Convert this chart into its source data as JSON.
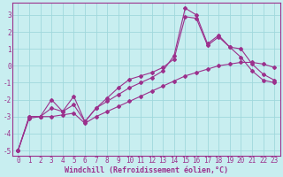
{
  "xlabel": "Windchill (Refroidissement éolien,°C)",
  "bg_color": "#c8eef0",
  "line_color": "#9b308c",
  "grid_color": "#a0d8dc",
  "xlim": [
    -0.5,
    23.5
  ],
  "ylim": [
    -5.3,
    3.7
  ],
  "xticks": [
    0,
    1,
    2,
    3,
    4,
    5,
    6,
    7,
    8,
    9,
    10,
    11,
    12,
    13,
    14,
    15,
    16,
    17,
    18,
    19,
    20,
    21,
    22,
    23
  ],
  "yticks": [
    -5,
    -4,
    -3,
    -2,
    -1,
    0,
    1,
    2,
    3
  ],
  "line1_x": [
    0,
    1,
    2,
    3,
    4,
    5,
    6,
    7,
    8,
    9,
    10,
    11,
    12,
    13,
    14,
    15,
    16,
    17,
    18,
    19,
    20,
    21,
    22,
    23
  ],
  "line1_y": [
    -5.0,
    -3.1,
    -3.0,
    -3.0,
    -2.9,
    -2.8,
    -3.4,
    -3.0,
    -2.7,
    -2.4,
    -2.1,
    -1.8,
    -1.5,
    -1.2,
    -0.9,
    -0.6,
    -0.4,
    -0.2,
    0.0,
    0.1,
    0.2,
    0.2,
    0.1,
    -0.1
  ],
  "line2_x": [
    0,
    1,
    2,
    3,
    4,
    5,
    6,
    7,
    8,
    9,
    10,
    11,
    12,
    13,
    14,
    15,
    16,
    17,
    18,
    19,
    20,
    21,
    22,
    23
  ],
  "line2_y": [
    -5.0,
    -3.0,
    -3.0,
    -2.0,
    -2.7,
    -1.8,
    -3.3,
    -2.5,
    -1.9,
    -1.3,
    -0.8,
    -0.6,
    -0.4,
    -0.1,
    0.4,
    2.9,
    2.8,
    1.2,
    1.7,
    1.1,
    1.0,
    0.1,
    -0.5,
    -0.85
  ],
  "line3_x": [
    0,
    1,
    2,
    3,
    4,
    5,
    6,
    7,
    8,
    9,
    10,
    11,
    12,
    13,
    14,
    15,
    16,
    17,
    18,
    19,
    20,
    21,
    22,
    23
  ],
  "line3_y": [
    -5.0,
    -3.0,
    -3.0,
    -2.5,
    -2.7,
    -2.3,
    -3.3,
    -2.5,
    -2.1,
    -1.7,
    -1.3,
    -1.0,
    -0.7,
    -0.3,
    0.6,
    3.4,
    3.0,
    1.3,
    1.8,
    1.1,
    0.5,
    -0.3,
    -0.85,
    -1.0
  ]
}
